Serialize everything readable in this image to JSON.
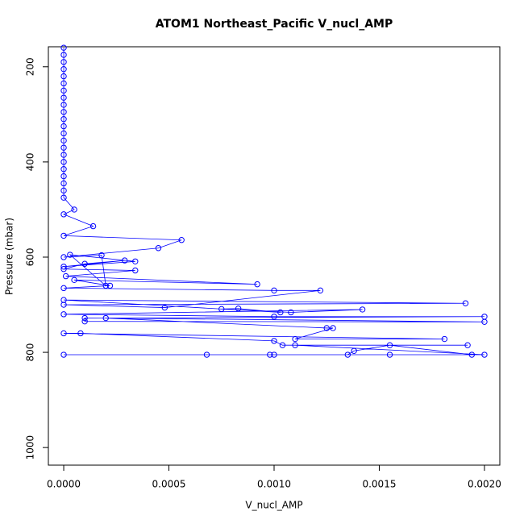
{
  "chart_data": {
    "type": "line",
    "title": "ATOM1 Northeast_Pacific V_nucl_AMP",
    "x_label": "V_nucl_AMP",
    "y_label": "Pressure (mbar)",
    "color": "#0000ff",
    "x": [
      0,
      0,
      0,
      0,
      0,
      0,
      0,
      0,
      0,
      0,
      0,
      0,
      0,
      0,
      0,
      0,
      0,
      0,
      0,
      0,
      0,
      0,
      5e-05,
      0,
      0.00014,
      0,
      0.00056,
      0.00045,
      0,
      0.00018,
      0.0002,
      3e-05,
      0.00034,
      0,
      0.00029,
      0.0001,
      0,
      0.00034,
      1e-05,
      0.00092,
      5e-05,
      0.00022,
      0,
      0.001,
      0.00122,
      0.00048,
      0,
      0.00191,
      0,
      0.00103,
      0.00083,
      0.00075,
      0.00108,
      0.00142,
      0,
      0.001,
      0.002,
      0.0001,
      0.0001,
      0.002,
      0.0002,
      0.00125,
      0.00128,
      0.0011,
      0.00181,
      0,
      8e-05,
      0.001,
      0.00104,
      0.00192,
      0.0011,
      0.002,
      0,
      0.00068,
      0.00098,
      0.001,
      0.00155,
      0.00135,
      0.00138,
      0.00155,
      0.00194
    ],
    "y": [
      160,
      175,
      190,
      205,
      220,
      235,
      250,
      265,
      280,
      295,
      310,
      325,
      340,
      355,
      370,
      385,
      400,
      415,
      430,
      445,
      460,
      475,
      500,
      510,
      535,
      555,
      564,
      581,
      600,
      596,
      660,
      595,
      609,
      620,
      607,
      614,
      625,
      628,
      640,
      657,
      648,
      660,
      665,
      670,
      670,
      706,
      700,
      697,
      690,
      716,
      708,
      709,
      716,
      710,
      720,
      725,
      725,
      728,
      735,
      736,
      728,
      749,
      749,
      772,
      772,
      760,
      760,
      776,
      785,
      785,
      785,
      805,
      805,
      805,
      805,
      805,
      805,
      805,
      797,
      785,
      805
    ],
    "xlim": [
      -7.3e-05,
      0.002073
    ],
    "ylim": [
      1037,
      158
    ],
    "xticks": [
      {
        "value": 0,
        "label": "0.0000"
      },
      {
        "value": 0.0005,
        "label": "0.0005"
      },
      {
        "value": 0.001,
        "label": "0.0010"
      },
      {
        "value": 0.0015,
        "label": "0.0015"
      },
      {
        "value": 0.002,
        "label": "0.0020"
      }
    ],
    "yticks": [
      200,
      400,
      600,
      800,
      1000
    ]
  }
}
